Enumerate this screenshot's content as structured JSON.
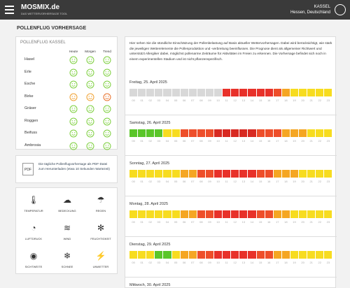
{
  "header": {
    "brand": "MOSMIX.de",
    "tagline": "DAS WETTERVORHERSAGE TOOL",
    "location": "KASSEL",
    "region": "Hessen, Deutschland"
  },
  "page_title": "POLLENFLUG VORHERSAGE",
  "pollen_table": {
    "title": "POLLENFLUG KASSEL",
    "columns": [
      "Heute",
      "Morgen",
      "Trend"
    ],
    "rows": [
      {
        "name": "Hasel",
        "colors": [
          "#7ccf3c",
          "#7ccf3c",
          "#7ccf3c"
        ]
      },
      {
        "name": "Erle",
        "colors": [
          "#7ccf3c",
          "#7ccf3c",
          "#7ccf3c"
        ]
      },
      {
        "name": "Esche",
        "colors": [
          "#7ccf3c",
          "#7ccf3c",
          "#7ccf3c"
        ]
      },
      {
        "name": "Birke",
        "colors": [
          "#f0a030",
          "#f0a030",
          "#e8702a"
        ]
      },
      {
        "name": "Gräser",
        "colors": [
          "#7ccf3c",
          "#7ccf3c",
          "#7ccf3c"
        ]
      },
      {
        "name": "Roggen",
        "colors": [
          "#7ccf3c",
          "#7ccf3c",
          "#7ccf3c"
        ]
      },
      {
        "name": "Beifuss",
        "colors": [
          "#7ccf3c",
          "#7ccf3c",
          "#7ccf3c"
        ]
      },
      {
        "name": "Ambrosia",
        "colors": [
          "#7ccf3c",
          "#7ccf3c",
          "#7ccf3c"
        ]
      }
    ]
  },
  "pdf_box": {
    "icon": "PDF",
    "text": "Die tägliche Pollenflugvorhersage als PDF-Datei zum Herunterladen (etwa 10 Sekunden Wartezeit)"
  },
  "nav_icons": [
    "TEMPERATUR",
    "BEDECKUNG",
    "REGEN",
    "LUFTDRUCK",
    "WIND",
    "FEUCHTIGKEIT",
    "SICHTWEITE",
    "SCHNEE",
    "UNWETTER"
  ],
  "intro": "Hier sehen Sie die stündliche Einschätzung der Pollenbelastung auf Basis aktueller Wettervorhersagen. Dabei wird berücksichtigt, wie stark die jeweiligen Wetterelemente die Pollenproduktion und -verbreitung beeinflussen. Die Prognose dient als allgemeiner Richtwert und unterstützt Allergiker dabei, möglichst pollenarme Zeiträume für Aktivitäten im Freien zu erkennen. Die Vorhersage befindet sich noch in einem experimentellen Stadium und ist nicht pflanzenspezifisch.",
  "forecast": {
    "hours": [
      "00",
      "01",
      "02",
      "03",
      "04",
      "05",
      "06",
      "07",
      "08",
      "09",
      "10",
      "11",
      "12",
      "13",
      "14",
      "15",
      "16",
      "17",
      "18",
      "19",
      "20",
      "21",
      "22",
      "23"
    ],
    "days": [
      {
        "label": "Freitag, 25. April 2025",
        "colors": [
          "#d8d8d8",
          "#d8d8d8",
          "#d8d8d8",
          "#d8d8d8",
          "#d8d8d8",
          "#d8d8d8",
          "#d8d8d8",
          "#d8d8d8",
          "#d8d8d8",
          "#d8d8d8",
          "#d8d8d8",
          "#e8312a",
          "#e8312a",
          "#e8312a",
          "#e8312a",
          "#e8312a",
          "#e8312a",
          "#ee4e2a",
          "#f5a623",
          "#f7dc1f",
          "#f7dc1f",
          "#f7dc1f",
          "#f7dc1f",
          "#f7dc1f"
        ]
      },
      {
        "label": "Samstag, 26. April 2025",
        "colors": [
          "#5ac629",
          "#5ac629",
          "#5ac629",
          "#5ac629",
          "#f7dc1f",
          "#f7dc1f",
          "#ee4e2a",
          "#ee4e2a",
          "#ee4e2a",
          "#ee4e2a",
          "#d82a22",
          "#d82a22",
          "#d82a22",
          "#d82a22",
          "#d82a22",
          "#ee4e2a",
          "#ee4e2a",
          "#ee4e2a",
          "#f5a623",
          "#f5a623",
          "#f5a623",
          "#f7dc1f",
          "#f7dc1f",
          "#f7dc1f"
        ]
      },
      {
        "label": "Sonntag, 27. April 2025",
        "colors": [
          "#f7dc1f",
          "#f7dc1f",
          "#f7dc1f",
          "#f7dc1f",
          "#f7dc1f",
          "#f7dc1f",
          "#f5a623",
          "#f5a623",
          "#ee4e2a",
          "#ee4e2a",
          "#e8312a",
          "#e8312a",
          "#e8312a",
          "#e8312a",
          "#e8312a",
          "#ee4e2a",
          "#ee4e2a",
          "#f5a623",
          "#f5a623",
          "#f5a623",
          "#f7dc1f",
          "#f7dc1f",
          "#f7dc1f",
          "#f7dc1f"
        ]
      },
      {
        "label": "Montag, 28. April 2025",
        "colors": [
          "#f7dc1f",
          "#f7dc1f",
          "#f7dc1f",
          "#f7dc1f",
          "#f7dc1f",
          "#f7dc1f",
          "#f5a623",
          "#f5a623",
          "#ee4e2a",
          "#ee4e2a",
          "#e8312a",
          "#e8312a",
          "#e8312a",
          "#e8312a",
          "#e8312a",
          "#ee4e2a",
          "#ee4e2a",
          "#f5a623",
          "#f5a623",
          "#f7dc1f",
          "#f7dc1f",
          "#f7dc1f",
          "#f7dc1f",
          "#f7dc1f"
        ]
      },
      {
        "label": "Dienstag, 29. April 2025",
        "colors": [
          "#f7dc1f",
          "#f7dc1f",
          "#f7dc1f",
          "#5ac629",
          "#5ac629",
          "#f7dc1f",
          "#f5a623",
          "#f5a623",
          "#ee4e2a",
          "#ee4e2a",
          "#e8312a",
          "#e8312a",
          "#e8312a",
          "#e8312a",
          "#e8312a",
          "#ee4e2a",
          "#ee4e2a",
          "#f5a623",
          "#f5a623",
          "#f7dc1f",
          "#f7dc1f",
          "#f7dc1f",
          "#f7dc1f",
          "#f7dc1f"
        ]
      },
      {
        "label": "Mittwoch, 30. April 2025",
        "colors": []
      }
    ]
  }
}
